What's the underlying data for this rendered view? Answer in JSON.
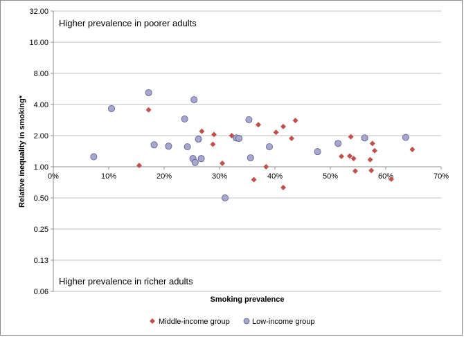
{
  "chart_data": {
    "type": "scatter",
    "xlabel": "Smoking prevalence",
    "ylabel": "Relative inequality in smoking*",
    "x_ticks": [
      "0%",
      "10%",
      "20%",
      "30%",
      "40%",
      "50%",
      "60%",
      "70%"
    ],
    "y_ticks": [
      "32.00",
      "16.00",
      "8.00",
      "4.00",
      "2.00",
      "1.00",
      "0.50",
      "0.25",
      "0.13",
      "0.06"
    ],
    "y_scale": "log2",
    "xlim": [
      0,
      0.7
    ],
    "ylim": [
      0.0625,
      32
    ],
    "x_axis_crosses_y_at": 1.0,
    "annotations": {
      "top": "Higher prevalence in poorer adults",
      "bottom": "Higher prevalence in richer adults"
    },
    "colors": {
      "middle_income": "#c0504d",
      "low_income": "#a6a6cf",
      "low_income_edge": "#5a5a8a",
      "grid": "#bfbfbf"
    },
    "series": [
      {
        "name": "Middle-income group",
        "marker": "diamond",
        "points": [
          [
            0.155,
            1.03
          ],
          [
            0.172,
            3.55
          ],
          [
            0.268,
            2.2
          ],
          [
            0.288,
            1.65
          ],
          [
            0.29,
            2.05
          ],
          [
            0.305,
            1.08
          ],
          [
            0.322,
            2.0
          ],
          [
            0.362,
            0.75
          ],
          [
            0.37,
            2.55
          ],
          [
            0.384,
            1.0
          ],
          [
            0.402,
            2.15
          ],
          [
            0.415,
            0.63
          ],
          [
            0.415,
            2.45
          ],
          [
            0.43,
            1.88
          ],
          [
            0.437,
            2.8
          ],
          [
            0.52,
            1.26
          ],
          [
            0.535,
            1.27
          ],
          [
            0.537,
            1.95
          ],
          [
            0.542,
            1.2
          ],
          [
            0.545,
            0.91
          ],
          [
            0.572,
            1.17
          ],
          [
            0.574,
            0.92
          ],
          [
            0.576,
            1.68
          ],
          [
            0.58,
            1.43
          ],
          [
            0.61,
            0.76
          ],
          [
            0.648,
            1.47
          ]
        ]
      },
      {
        "name": "Low-income group",
        "marker": "circle",
        "points": [
          [
            0.073,
            1.25
          ],
          [
            0.105,
            3.65
          ],
          [
            0.172,
            5.2
          ],
          [
            0.182,
            1.63
          ],
          [
            0.208,
            1.58
          ],
          [
            0.237,
            2.9
          ],
          [
            0.242,
            1.56
          ],
          [
            0.252,
            1.2
          ],
          [
            0.254,
            4.45
          ],
          [
            0.256,
            1.1
          ],
          [
            0.262,
            1.85
          ],
          [
            0.267,
            1.2
          ],
          [
            0.31,
            0.5
          ],
          [
            0.33,
            1.9
          ],
          [
            0.335,
            1.88
          ],
          [
            0.353,
            2.85
          ],
          [
            0.356,
            1.22
          ],
          [
            0.39,
            1.56
          ],
          [
            0.477,
            1.4
          ],
          [
            0.514,
            1.68
          ],
          [
            0.562,
            1.9
          ],
          [
            0.636,
            1.92
          ]
        ]
      }
    ]
  }
}
